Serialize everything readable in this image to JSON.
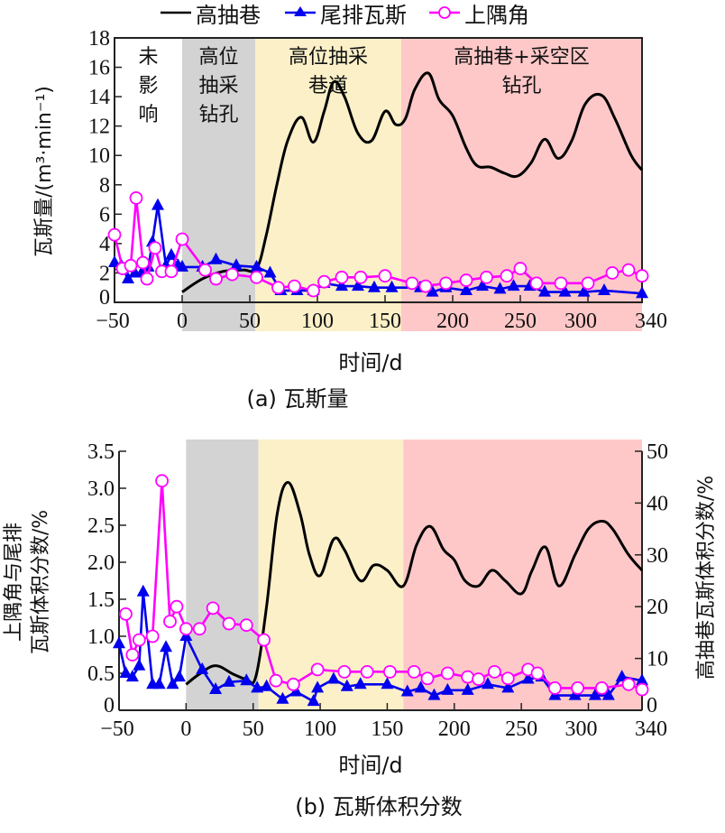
{
  "legend": {
    "items": [
      {
        "label": "高抽巷",
        "color": "#000000",
        "marker": "none"
      },
      {
        "label": "尾排瓦斯",
        "color": "#0000ee",
        "marker": "triangle"
      },
      {
        "label": "上隅角",
        "color": "#ff00ff",
        "marker": "circle"
      }
    ]
  },
  "regions": [
    {
      "label_lines": [
        "未",
        "影",
        "响"
      ],
      "x_start": -50,
      "x_end": 0,
      "color": "#ffffff"
    },
    {
      "label_lines": [
        "高位",
        "抽采",
        "钻孔"
      ],
      "x_start": 0,
      "x_end": 54,
      "color": "#d3d3d3"
    },
    {
      "label_lines": [
        "高位抽采",
        "巷道"
      ],
      "x_start": 54,
      "x_end": 162,
      "color": "#fbf0c8"
    },
    {
      "label_lines": [
        "高抽巷+采空区",
        "钻孔"
      ],
      "x_start": 162,
      "x_end": 340,
      "color": "#ffc8c8"
    }
  ],
  "chart_data": [
    {
      "type": "line",
      "caption": "(a) 瓦斯量",
      "xlabel": "时间/d",
      "ylabel": "瓦斯量/(m³·min⁻¹)",
      "xlim": [
        -50,
        340
      ],
      "ylim": [
        0,
        18
      ],
      "xticks": [
        -50,
        0,
        50,
        100,
        150,
        200,
        250,
        300,
        340
      ],
      "yticks": [
        0,
        2,
        4,
        6,
        8,
        10,
        12,
        14,
        16,
        18
      ],
      "series": [
        {
          "name": "高抽巷",
          "color": "#000000",
          "smooth": true,
          "x": [
            0,
            15,
            30,
            45,
            55,
            62,
            70,
            78,
            88,
            97,
            105,
            112,
            120,
            130,
            140,
            150,
            158,
            165,
            172,
            182,
            190,
            200,
            210,
            218,
            228,
            238,
            248,
            258,
            268,
            278,
            288,
            298,
            310,
            320,
            332,
            340
          ],
          "y": [
            0.7,
            1.6,
            2.1,
            2.2,
            2.3,
            4.5,
            8,
            11,
            12.6,
            10.9,
            13,
            15,
            14,
            11.5,
            11,
            13,
            12.1,
            12.5,
            14.5,
            15.6,
            13.8,
            12.7,
            10.5,
            9.3,
            9.2,
            8.8,
            8.6,
            9.5,
            11.1,
            9.8,
            11,
            13.5,
            14.1,
            12.5,
            10,
            9
          ]
        },
        {
          "name": "尾排瓦斯",
          "color": "#0000ee",
          "x": [
            -50,
            -45,
            -40,
            -35,
            -30,
            -25,
            -22,
            -18,
            -12,
            -8,
            -3,
            0,
            15,
            25,
            40,
            55,
            65,
            73,
            85,
            97,
            105,
            118,
            130,
            142,
            155,
            176,
            185,
            195,
            210,
            222,
            235,
            245,
            257,
            268,
            283,
            297,
            312,
            340
          ],
          "y": [
            2.7,
            2.5,
            1.6,
            2,
            2,
            2.4,
            4.1,
            6.6,
            2.5,
            3.2,
            2.5,
            2.4,
            2.4,
            2.9,
            2.5,
            2.4,
            2,
            0.8,
            0.8,
            0.8,
            1.3,
            1.1,
            1.1,
            1.0,
            1.0,
            1.0,
            0.7,
            1.0,
            0.8,
            1.1,
            0.9,
            1.1,
            1.1,
            0.7,
            0.7,
            0.7,
            0.8,
            0.6
          ]
        },
        {
          "name": "上隅角",
          "color": "#ff00ff",
          "x": [
            -50,
            -44,
            -38,
            -34,
            -29,
            -26,
            -20,
            -15,
            -8,
            0,
            17,
            25,
            37,
            55,
            71,
            83,
            97,
            105,
            118,
            132,
            150,
            170,
            180,
            195,
            210,
            225,
            240,
            250,
            262,
            280,
            300,
            318,
            330,
            340
          ],
          "y": [
            4.6,
            2.3,
            2.5,
            7.1,
            2.7,
            1.6,
            3.7,
            2.1,
            2.1,
            4.3,
            2.2,
            1.6,
            1.9,
            1.7,
            1.0,
            1.1,
            0.8,
            1.4,
            1.7,
            1.7,
            1.8,
            1.3,
            1.1,
            1.3,
            1.5,
            1.7,
            1.8,
            2.3,
            1.3,
            1.3,
            1.3,
            2.0,
            2.2,
            1.8
          ]
        }
      ]
    },
    {
      "type": "line",
      "caption": "(b) 瓦斯体积分数",
      "xlabel": "时间/d",
      "ylabel_left": "上隅角与尾排 瓦斯体积分数/%",
      "ylabel_left_lines": [
        "上隅角与尾排",
        "瓦斯体积分数/%"
      ],
      "ylabel_right": "高抽巷瓦斯体积分数/%",
      "xlim": [
        -50,
        340
      ],
      "ylim_left": [
        0,
        3.5
      ],
      "ylim_right": [
        0,
        50
      ],
      "xticks": [
        -50,
        0,
        50,
        100,
        150,
        200,
        250,
        300,
        340
      ],
      "yticks_left": [
        "0",
        "0.5",
        "1.0",
        "1.5",
        "2.0",
        "2.5",
        "3.0",
        "3.5"
      ],
      "yticks_right": [
        "0",
        "10",
        "20",
        "30",
        "40",
        "50"
      ],
      "series": [
        {
          "name": "高抽巷",
          "axis": "right",
          "color": "#000000",
          "smooth": true,
          "x": [
            0,
            10,
            22,
            35,
            45,
            52,
            60,
            68,
            76,
            85,
            92,
            100,
            110,
            118,
            130,
            140,
            150,
            162,
            172,
            182,
            192,
            200,
            208,
            218,
            228,
            238,
            250,
            258,
            268,
            278,
            290,
            300,
            310,
            318,
            330,
            340
          ],
          "y": [
            5,
            7,
            8.6,
            7,
            6,
            6.5,
            20,
            38,
            44,
            38,
            30,
            26,
            33,
            31,
            25,
            28,
            27,
            24,
            32,
            35.5,
            31,
            29,
            25,
            24,
            27,
            25,
            22.5,
            27,
            31.5,
            24,
            30,
            35,
            36.5,
            35,
            30,
            27
          ]
        },
        {
          "name": "尾排瓦斯",
          "axis": "left",
          "color": "#0000ee",
          "x": [
            -50,
            -45,
            -40,
            -35,
            -32,
            -25,
            -20,
            -15,
            -10,
            -5,
            0,
            12,
            22,
            32,
            45,
            53,
            60,
            72,
            82,
            95,
            98,
            110,
            120,
            130,
            150,
            165,
            175,
            185,
            195,
            210,
            225,
            240,
            255,
            265,
            275,
            290,
            305,
            315,
            325,
            340
          ],
          "y": [
            0.9,
            0.5,
            0.45,
            0.6,
            1.6,
            0.35,
            0.35,
            0.85,
            0.35,
            0.45,
            1.0,
            0.55,
            0.28,
            0.38,
            0.4,
            0.3,
            0.32,
            0.15,
            0.25,
            0.12,
            0.3,
            0.42,
            0.32,
            0.35,
            0.35,
            0.25,
            0.3,
            0.2,
            0.27,
            0.27,
            0.35,
            0.3,
            0.42,
            0.45,
            0.2,
            0.2,
            0.2,
            0.2,
            0.45,
            0.4
          ]
        },
        {
          "name": "上隅角",
          "axis": "left",
          "color": "#ff00ff",
          "x": [
            -45,
            -40,
            -35,
            -25,
            -18,
            -12,
            -7,
            0,
            10,
            20,
            32,
            45,
            58,
            67,
            80,
            98,
            118,
            135,
            152,
            170,
            180,
            195,
            210,
            218,
            230,
            240,
            255,
            262,
            275,
            292,
            310,
            330,
            340
          ],
          "y": [
            1.3,
            0.75,
            0.95,
            1.0,
            3.1,
            1.2,
            1.4,
            1.1,
            1.1,
            1.38,
            1.17,
            1.15,
            0.95,
            0.4,
            0.35,
            0.55,
            0.52,
            0.52,
            0.52,
            0.52,
            0.43,
            0.5,
            0.45,
            0.42,
            0.52,
            0.43,
            0.55,
            0.5,
            0.3,
            0.3,
            0.3,
            0.35,
            0.28
          ]
        }
      ]
    }
  ]
}
